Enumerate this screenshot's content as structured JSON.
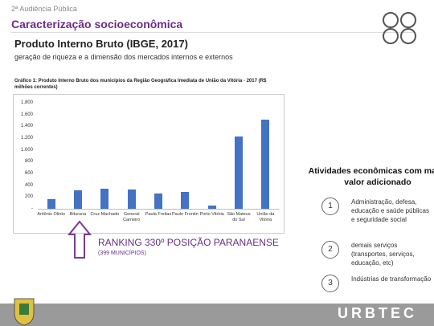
{
  "header": {
    "event": "2ª Audiência Pública",
    "section": "Caracterização socioeconômica"
  },
  "heading": "Produto Interno Bruto (IBGE, 2017)",
  "subheading": "geração de riqueza e a dimensão dos mercados internos e externos",
  "chart_data": {
    "type": "bar",
    "title": "Gráfico 1: Produto Interno Bruto dos municípios da Região Geográfica Imediata de União da Vitória - 2017 (R$ milhões correntes)",
    "categories": [
      "Antônio Olinto",
      "Bituruna",
      "Cruz Machado",
      "General Carneiro",
      "Paula Freitas",
      "Paulo Frontin",
      "Porto Vitória",
      "São Mateus do Sul",
      "União da Vitória"
    ],
    "values": [
      160,
      320,
      340,
      330,
      260,
      290,
      60,
      1230,
      1520
    ],
    "color": "#4472c4",
    "ylim": [
      0,
      1800
    ],
    "yticks": [
      {
        "value": 0,
        "label": "-"
      },
      200,
      400,
      600,
      800,
      {
        "value": 1000,
        "label": "1.000"
      },
      {
        "value": 1200,
        "label": "1.200"
      },
      {
        "value": 1400,
        "label": "1.400"
      },
      {
        "value": 1600,
        "label": "1.600"
      },
      {
        "value": 1800,
        "label": "1.800"
      }
    ],
    "grid": false
  },
  "ranking": {
    "title": "RANKING 330º POSIÇÃO PARANAENSE",
    "note": "(399 MUNICÍPIOS)"
  },
  "activities": {
    "title": "Atividades econômicas com maior valor adicionado",
    "items": [
      {
        "number": "1",
        "text": "Administração, defesa, educação e saúde públicas e seguridade social"
      },
      {
        "number": "2",
        "text": "demais serviços (transportes, serviços, educação, etc)"
      },
      {
        "number": "3",
        "text": "Indústrias de transformação"
      }
    ]
  },
  "footer": {
    "brand": "URBTEC"
  }
}
